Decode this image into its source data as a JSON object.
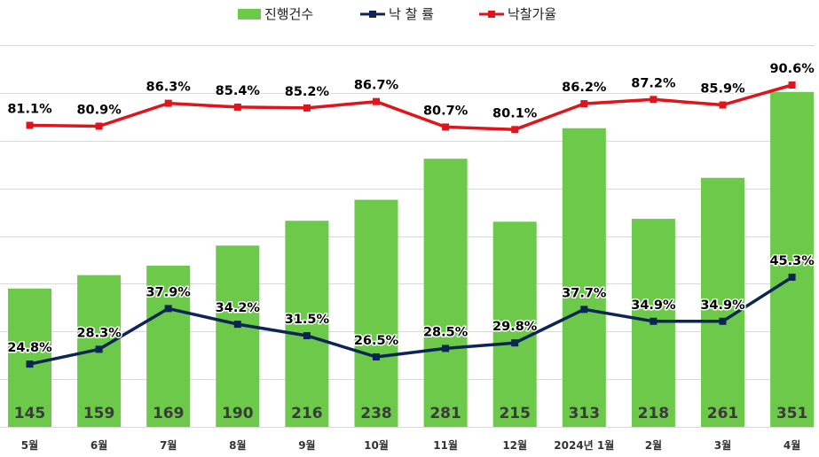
{
  "legend": {
    "bar_label": "진행건수",
    "rate_label": "낙 찰 률",
    "price_label": "낙찰가율"
  },
  "colors": {
    "bar": "#6cc94a",
    "rate_line": "#0d2556",
    "price_line": "#e0141b",
    "grid": "#d9d9d9"
  },
  "chart_data": {
    "type": "bar",
    "categories": [
      "5월",
      "6월",
      "7월",
      "8월",
      "9월",
      "10월",
      "11월",
      "12월",
      "2024년 1월",
      "2월",
      "3월",
      "4월"
    ],
    "series": [
      {
        "name": "진행건수",
        "type": "bar",
        "axis": "left",
        "values": [
          145,
          159,
          169,
          190,
          216,
          238,
          281,
          215,
          313,
          218,
          261,
          351
        ]
      },
      {
        "name": "낙 찰 률",
        "type": "line",
        "axis": "right",
        "values": [
          24.8,
          28.3,
          37.9,
          34.2,
          31.5,
          26.5,
          28.5,
          29.8,
          37.7,
          34.9,
          34.9,
          45.3
        ]
      },
      {
        "name": "낙찰가율",
        "type": "line",
        "axis": "right",
        "values": [
          81.1,
          80.9,
          86.3,
          85.4,
          85.2,
          86.7,
          80.7,
          80.1,
          86.2,
          87.2,
          85.9,
          90.6
        ]
      }
    ],
    "value_labels": {
      "bars": [
        "145",
        "159",
        "169",
        "190",
        "216",
        "238",
        "281",
        "215",
        "313",
        "218",
        "261",
        "351"
      ],
      "rate": [
        "24.8%",
        "28.3%",
        "37.9%",
        "34.2%",
        "31.5%",
        "26.5%",
        "28.5%",
        "29.8%",
        "37.7%",
        "34.9%",
        "34.9%",
        "45.3%"
      ],
      "price": [
        "81.1%",
        "80.9%",
        "86.3%",
        "85.4%",
        "85.2%",
        "86.7%",
        "80.7%",
        "80.1%",
        "86.2%",
        "87.2%",
        "85.9%",
        "90.6%"
      ]
    },
    "title": "",
    "xlabel": "",
    "ylabel": "",
    "ylim_left": [
      0,
      400
    ],
    "ylim_right": [
      10,
      100
    ],
    "grid": true,
    "legend_position": "top"
  }
}
